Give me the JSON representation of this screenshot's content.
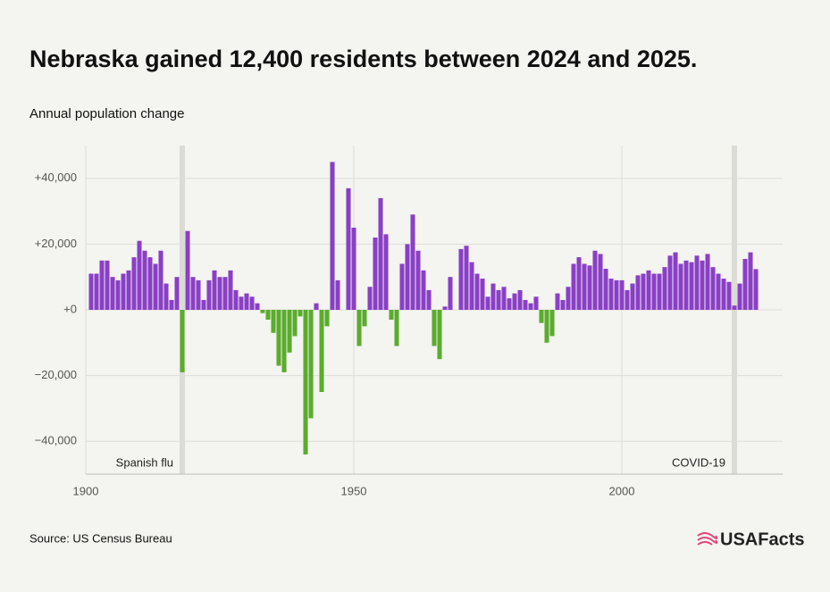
{
  "chart_data": {
    "type": "bar",
    "title": "Nebraska gained 12,400 residents between 2024 and 2025.",
    "subtitle": "Annual population change",
    "source": "Source: US Census Bureau",
    "brand": "USAFacts",
    "x": [
      1901,
      1902,
      1903,
      1904,
      1905,
      1906,
      1907,
      1908,
      1909,
      1910,
      1911,
      1912,
      1913,
      1914,
      1915,
      1916,
      1917,
      1918,
      1919,
      1920,
      1921,
      1922,
      1923,
      1924,
      1925,
      1926,
      1927,
      1928,
      1929,
      1930,
      1931,
      1932,
      1933,
      1934,
      1935,
      1936,
      1937,
      1938,
      1939,
      1940,
      1941,
      1942,
      1943,
      1944,
      1945,
      1946,
      1947,
      1948,
      1949,
      1950,
      1951,
      1952,
      1953,
      1954,
      1955,
      1956,
      1957,
      1958,
      1959,
      1960,
      1961,
      1962,
      1963,
      1964,
      1965,
      1966,
      1967,
      1968,
      1969,
      1970,
      1971,
      1972,
      1973,
      1974,
      1975,
      1976,
      1977,
      1978,
      1979,
      1980,
      1981,
      1982,
      1983,
      1984,
      1985,
      1986,
      1987,
      1988,
      1989,
      1990,
      1991,
      1992,
      1993,
      1994,
      1995,
      1996,
      1997,
      1998,
      1999,
      2000,
      2001,
      2002,
      2003,
      2004,
      2005,
      2006,
      2007,
      2008,
      2009,
      2010,
      2011,
      2012,
      2013,
      2014,
      2015,
      2016,
      2017,
      2018,
      2019,
      2020,
      2021,
      2022,
      2023,
      2024,
      2025
    ],
    "values": [
      11000,
      11000,
      15000,
      15000,
      10000,
      9000,
      11000,
      12000,
      16000,
      21000,
      18000,
      16000,
      14000,
      18000,
      8000,
      3000,
      10000,
      -19000,
      24000,
      10000,
      9000,
      3000,
      9000,
      12000,
      10000,
      10000,
      12000,
      6000,
      4000,
      5000,
      4000,
      2000,
      -1000,
      -3000,
      -7000,
      -17000,
      -19000,
      -13000,
      -8000,
      -2000,
      -44000,
      -33000,
      2000,
      -25000,
      -5000,
      45000,
      9000,
      0,
      37000,
      25000,
      -11000,
      -5000,
      7000,
      22000,
      34000,
      23000,
      -3000,
      -11000,
      14000,
      20000,
      29000,
      18000,
      12000,
      6000,
      -11000,
      -15000,
      1000,
      10000,
      0,
      18500,
      19500,
      14500,
      11000,
      9500,
      4000,
      8000,
      6000,
      7000,
      3500,
      5000,
      6000,
      3000,
      2000,
      4000,
      -4000,
      -10000,
      -8000,
      5000,
      3000,
      7000,
      14000,
      16000,
      14000,
      13500,
      18000,
      17000,
      12500,
      9500,
      9000,
      9000,
      6000,
      8000,
      10500,
      11000,
      12000,
      11000,
      11000,
      13000,
      16500,
      17500,
      14000,
      15000,
      14500,
      16500,
      15000,
      17000,
      13000,
      11000,
      9500,
      8500,
      1300,
      8000,
      15500,
      17500,
      12400
    ],
    "positive_color": "#8a3fc6",
    "negative_color": "#5aac2c",
    "xlim": [
      1900,
      2030
    ],
    "xticks": [
      1900,
      1950,
      2000
    ],
    "ylim": [
      -50000,
      50000
    ],
    "yticks": [
      {
        "value": 40000,
        "label": "+40,000"
      },
      {
        "value": 20000,
        "label": "+20,000"
      },
      {
        "value": 0,
        "label": "+0"
      },
      {
        "value": -20000,
        "label": "−20,000"
      },
      {
        "value": -40000,
        "label": "−40,000"
      }
    ],
    "grid": true,
    "highlights": [
      {
        "x": 1918,
        "label": "Spanish flu"
      },
      {
        "x": 2021,
        "label": "COVID-19"
      }
    ]
  }
}
